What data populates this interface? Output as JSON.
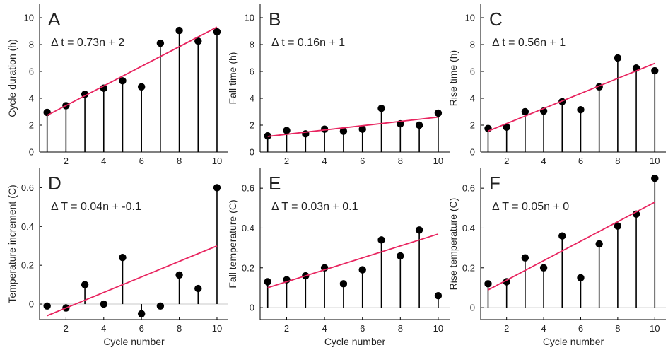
{
  "colors": {
    "fit_line": "#e8245f",
    "stem": "#000000",
    "marker": "#000000",
    "axis": "#000000"
  },
  "chart_data": [
    {
      "panel": "A",
      "type": "stem",
      "equation": "Δ t = 0.73n + 2",
      "xlabel": "",
      "ylabel": "Cycle duration (h)",
      "x": [
        1,
        2,
        3,
        4,
        5,
        6,
        7,
        8,
        9,
        10
      ],
      "y": [
        2.95,
        3.45,
        4.3,
        4.75,
        5.3,
        4.85,
        8.1,
        9.05,
        8.25,
        8.95
      ],
      "fit": {
        "slope": 0.73,
        "intercept": 2
      },
      "xlim": [
        0.6,
        10.6
      ],
      "ylim": [
        0,
        11
      ],
      "xticks": [
        2,
        4,
        6,
        8,
        10
      ],
      "yticks": [
        0,
        2,
        4,
        6,
        8,
        10
      ]
    },
    {
      "panel": "B",
      "type": "stem",
      "equation": "Δ t = 0.16n + 1",
      "xlabel": "",
      "ylabel": "Fall time (h)",
      "x": [
        1,
        2,
        3,
        4,
        5,
        6,
        7,
        8,
        9,
        10
      ],
      "y": [
        1.2,
        1.6,
        1.35,
        1.7,
        1.55,
        1.7,
        3.25,
        2.1,
        2.0,
        2.9
      ],
      "fit": {
        "slope": 0.16,
        "intercept": 1
      },
      "xlim": [
        0.6,
        10.6
      ],
      "ylim": [
        0,
        11
      ],
      "xticks": [
        2,
        4,
        6,
        8,
        10
      ],
      "yticks": [
        0,
        2,
        4,
        6,
        8,
        10
      ]
    },
    {
      "panel": "C",
      "type": "stem",
      "equation": "Δ t = 0.56n + 1",
      "xlabel": "",
      "ylabel": "Rise time (h)",
      "x": [
        1,
        2,
        3,
        4,
        5,
        6,
        7,
        8,
        9,
        10
      ],
      "y": [
        1.75,
        1.85,
        3.0,
        3.05,
        3.75,
        3.15,
        4.85,
        7.0,
        6.25,
        6.05
      ],
      "fit": {
        "slope": 0.56,
        "intercept": 1
      },
      "xlim": [
        0.6,
        10.6
      ],
      "ylim": [
        0,
        11
      ],
      "xticks": [
        2,
        4,
        6,
        8,
        10
      ],
      "yticks": [
        0,
        2,
        4,
        6,
        8,
        10
      ]
    },
    {
      "panel": "D",
      "type": "stem",
      "equation": "Δ T = 0.04n + -0.1",
      "xlabel": "Cycle number",
      "ylabel": "Temperature increment (C)",
      "x": [
        1,
        2,
        3,
        4,
        5,
        6,
        7,
        8,
        9,
        10
      ],
      "y": [
        -0.01,
        -0.02,
        0.1,
        0.0,
        0.24,
        -0.05,
        -0.01,
        0.15,
        0.08,
        0.6
      ],
      "fit": {
        "slope": 0.04,
        "intercept": -0.1
      },
      "xlim": [
        0.6,
        10.6
      ],
      "ylim": [
        -0.08,
        0.7
      ],
      "xticks": [
        2,
        4,
        6,
        8,
        10
      ],
      "yticks": [
        0,
        0.2,
        0.4,
        0.6
      ]
    },
    {
      "panel": "E",
      "type": "stem",
      "equation": "Δ T = 0.03n + 0.1",
      "xlabel": "Cycle number",
      "ylabel": "Fall temperature (C)",
      "x": [
        1,
        2,
        3,
        4,
        5,
        6,
        7,
        8,
        9,
        10
      ],
      "y": [
        0.13,
        0.14,
        0.16,
        0.2,
        0.12,
        0.19,
        0.34,
        0.26,
        0.39,
        0.06
      ],
      "fit": {
        "slope": 0.03,
        "intercept": 0.07
      },
      "xlim": [
        0.6,
        10.6
      ],
      "ylim": [
        -0.06,
        0.7
      ],
      "xticks": [
        2,
        4,
        6,
        8,
        10
      ],
      "yticks": [
        0,
        0.2,
        0.4,
        0.6
      ]
    },
    {
      "panel": "F",
      "type": "stem",
      "equation": "Δ T = 0.05n + 0",
      "xlabel": "Cycle number",
      "ylabel": "Rise temperature (C)",
      "x": [
        1,
        2,
        3,
        4,
        5,
        6,
        7,
        8,
        9,
        10
      ],
      "y": [
        0.12,
        0.13,
        0.25,
        0.2,
        0.36,
        0.15,
        0.32,
        0.41,
        0.47,
        0.65
      ],
      "fit": {
        "slope": 0.049,
        "intercept": 0.04
      },
      "xlim": [
        0.6,
        10.6
      ],
      "ylim": [
        -0.06,
        0.7
      ],
      "xticks": [
        2,
        4,
        6,
        8,
        10
      ],
      "yticks": [
        0,
        0.2,
        0.4,
        0.6
      ]
    }
  ]
}
